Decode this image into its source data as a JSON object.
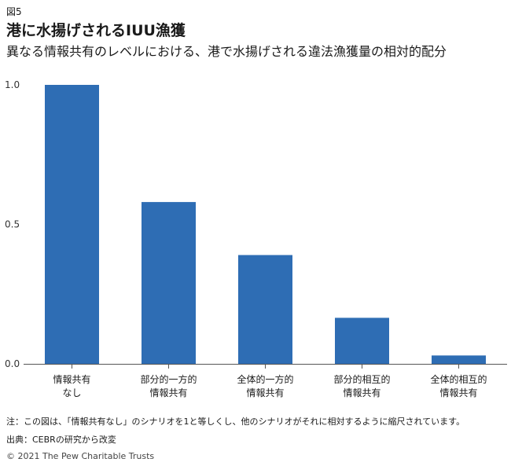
{
  "figure_label": "図5",
  "title": "港に水揚げされるIUU漁獲",
  "subtitle": "異なる情報共有のレベルにおける、港で水揚げされる違法漁獲量の相対的配分",
  "chart_data": {
    "type": "bar",
    "categories": [
      [
        "情報共有",
        "なし"
      ],
      [
        "部分的一方的",
        "情報共有"
      ],
      [
        "全体的一方的",
        "情報共有"
      ],
      [
        "部分的相互的",
        "情報共有"
      ],
      [
        "全体的相互的",
        "情報共有"
      ]
    ],
    "values": [
      1.0,
      0.58,
      0.39,
      0.165,
      0.03
    ],
    "ylim": [
      0,
      1.0
    ],
    "yticks": [
      "0.0",
      "0.5",
      "1.0"
    ],
    "ytick_values": [
      0.0,
      0.5,
      1.0
    ],
    "bar_color": "#2e6db4",
    "grid": false
  },
  "note": "注：この図は、「情報共有なし」のシナリオを1と等しくし、他のシナリオがそれに相対するように縮尺されています。",
  "source": "出典：CEBRの研究から改変",
  "copyright": "© 2021 The Pew Charitable Trusts"
}
